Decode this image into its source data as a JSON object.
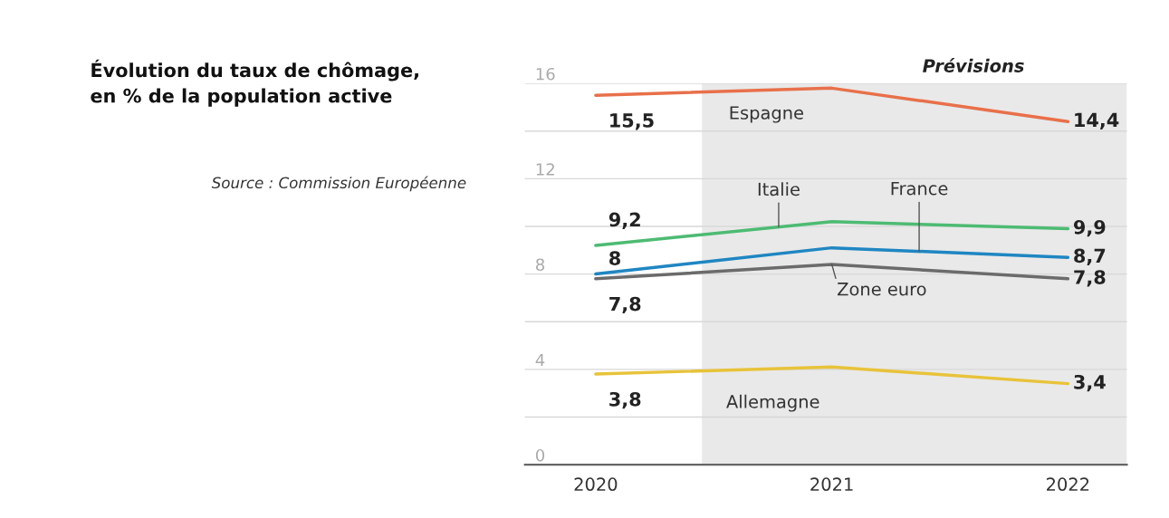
{
  "chart_data": {
    "type": "line",
    "title": "Évolution du taux de chômage,\nen % de la population active",
    "annotations": [
      "Source : Commission Européenne"
    ],
    "x": [
      2020,
      2021,
      2022
    ],
    "xlim": [
      2019.7,
      2022.25
    ],
    "xticks": [
      2020,
      2021,
      2022
    ],
    "ylim": [
      0,
      16
    ],
    "yticks": [
      0,
      {
        "value": 2,
        "label": null
      },
      4,
      {
        "value": 6,
        "label": null
      },
      8,
      {
        "value": 10,
        "label": null
      },
      12,
      {
        "value": 14,
        "label": null
      },
      16
    ],
    "grid": "y",
    "bands": [
      {
        "axis": "x",
        "from": 2020.45,
        "to": 2022.25,
        "label": "Prévisions",
        "color": "#e9e9e9"
      }
    ],
    "series": [
      {
        "name": "Espagne",
        "color": "#e8704a",
        "values": [
          15.5,
          15.8,
          14.4
        ],
        "value_labels": [
          "15,5",
          null,
          "14,4"
        ]
      },
      {
        "name": "Italie",
        "color": "#4dbb73",
        "values": [
          9.2,
          10.2,
          9.9
        ],
        "value_labels": [
          "9,2",
          null,
          "9,9"
        ]
      },
      {
        "name": "France",
        "color": "#1f86c2",
        "values": [
          8,
          9.1,
          8.7
        ],
        "value_labels": [
          "8",
          null,
          "8,7"
        ]
      },
      {
        "name": "Zone euro",
        "color": "#6b6b6b",
        "values": [
          7.8,
          8.4,
          7.8
        ],
        "value_labels": [
          "7,8",
          null,
          "7,8"
        ]
      },
      {
        "name": "Allemagne",
        "color": "#e8c33a",
        "values": [
          3.8,
          4.1,
          3.4
        ],
        "value_labels": [
          "3,8",
          null,
          "3,4"
        ]
      }
    ]
  }
}
